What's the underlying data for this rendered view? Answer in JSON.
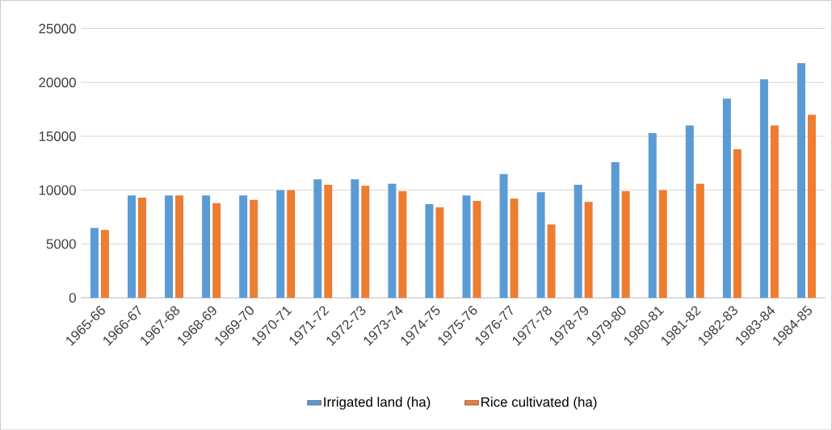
{
  "chart_data": {
    "type": "bar",
    "categories": [
      "1965-66",
      "1966-67",
      "1967-68",
      "1968-69",
      "1969-70",
      "1970-71",
      "1971-72",
      "1972-73",
      "1973-74",
      "1974-75",
      "1975-76",
      "1976-77",
      "1977-78",
      "1978-79",
      "1979-80",
      "1980-81",
      "1981-82",
      "1982-83",
      "1983-84",
      "1984-85"
    ],
    "series": [
      {
        "name": "Irrigated land (ha)",
        "color": "#5b9bd5",
        "values": [
          6500,
          9500,
          9500,
          9500,
          9500,
          10000,
          11000,
          11000,
          10600,
          8700,
          9500,
          11500,
          9800,
          10500,
          12600,
          15300,
          16000,
          18500,
          20300,
          21800
        ]
      },
      {
        "name": "Rice cultivated (ha)",
        "color": "#ed7d31",
        "values": [
          6300,
          9300,
          9500,
          8800,
          9100,
          10000,
          10500,
          10400,
          9900,
          8400,
          9000,
          9200,
          6800,
          8900,
          9900,
          10000,
          10600,
          13800,
          16000,
          17000
        ]
      }
    ],
    "ylim": [
      0,
      25000
    ],
    "yticks": [
      0,
      5000,
      10000,
      15000,
      20000,
      25000
    ],
    "grid": "y",
    "legend": "bottom"
  }
}
